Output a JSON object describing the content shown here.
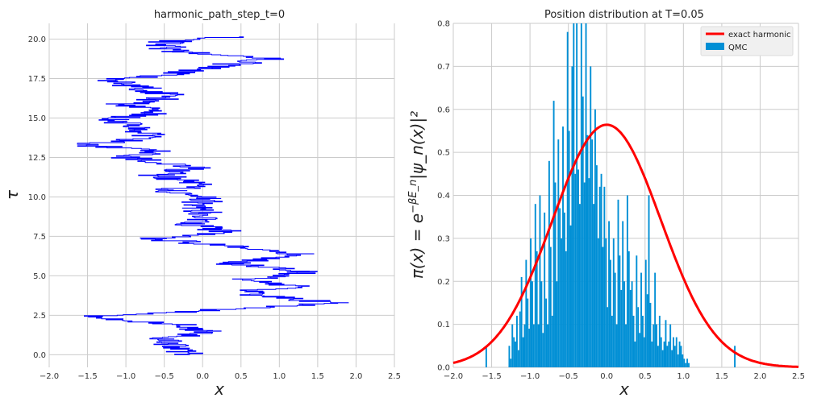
{
  "colors": {
    "background": "#ffffff",
    "axes_bg": "#ffffff",
    "grid": "#cbcbcb",
    "path": "#0000ff",
    "histogram": "#008fd5",
    "exact_curve": "#ff0000"
  },
  "chart_data": [
    {
      "type": "line",
      "title": "harmonic_path_step_t=0",
      "xlabel": "x",
      "ylabel": "τ",
      "xlim": [
        -2.0,
        2.5
      ],
      "ylim": [
        -0.8,
        21.0
      ],
      "grid": true,
      "xticks": [
        "−2.0",
        "−1.5",
        "−1.0",
        "−0.5",
        "0.0",
        "0.5",
        "1.0",
        "1.5",
        "2.0",
        "2.5"
      ],
      "yticks": [
        "0.0",
        "2.5",
        "5.0",
        "7.5",
        "10.0",
        "12.5",
        "15.0",
        "17.5",
        "20.0"
      ],
      "series": [
        {
          "style": "step",
          "anchors": [
            [
              0,
              -0.25
            ],
            [
              0.5,
              -0.35
            ],
            [
              1.0,
              -0.55
            ],
            [
              1.5,
              0.05
            ],
            [
              2.0,
              -0.4
            ],
            [
              2.4,
              -1.55
            ],
            [
              2.8,
              0.0
            ],
            [
              3.3,
              1.7
            ],
            [
              3.7,
              0.9
            ],
            [
              4.0,
              0.5
            ],
            [
              4.3,
              1.25
            ],
            [
              4.8,
              0.6
            ],
            [
              5.3,
              1.45
            ],
            [
              5.8,
              0.3
            ],
            [
              6.4,
              1.3
            ],
            [
              6.8,
              0.5
            ],
            [
              7.4,
              -0.7
            ],
            [
              7.8,
              0.35
            ],
            [
              8.3,
              -0.2
            ],
            [
              8.8,
              0.1
            ],
            [
              9.3,
              -0.05
            ],
            [
              9.9,
              0.0
            ],
            [
              10.4,
              -0.4
            ],
            [
              10.9,
              -0.1
            ],
            [
              11.4,
              -0.6
            ],
            [
              11.9,
              -0.05
            ],
            [
              12.5,
              -0.95
            ],
            [
              13.0,
              -0.5
            ],
            [
              13.3,
              -1.6
            ],
            [
              13.8,
              -0.6
            ],
            [
              14.3,
              -0.9
            ],
            [
              14.9,
              -1.15
            ],
            [
              15.4,
              -0.6
            ],
            [
              15.9,
              -1.0
            ],
            [
              16.4,
              -0.3
            ],
            [
              16.9,
              -0.8
            ],
            [
              17.4,
              -1.2
            ],
            [
              17.8,
              -0.4
            ],
            [
              18.3,
              0.2
            ],
            [
              18.8,
              0.9
            ],
            [
              19.2,
              -0.3
            ],
            [
              19.7,
              -0.6
            ],
            [
              20.0,
              -0.25
            ],
            [
              20.2,
              0.5
            ]
          ]
        }
      ]
    },
    {
      "type": "bar",
      "title": "Position distribution at T=0.05",
      "xlabel": "x",
      "ylabel": "π(x) = e^{−βE_n}|ψ_n(x)|²",
      "xlim": [
        -2.0,
        2.5
      ],
      "ylim": [
        0.0,
        0.8
      ],
      "grid": true,
      "xticks": [
        "−2.0",
        "−1.5",
        "−1.0",
        "−0.5",
        "0.0",
        "0.5",
        "1.0",
        "1.5",
        "2.0",
        "2.5"
      ],
      "yticks": [
        "0.0",
        "0.1",
        "0.2",
        "0.3",
        "0.4",
        "0.5",
        "0.6",
        "0.7",
        "0.8"
      ],
      "legend_position": "top-right",
      "legend": [
        "exact harmonic",
        "QMC"
      ],
      "series": [
        {
          "name": "QMC",
          "kind": "histogram",
          "bin_range": [
            -1.58,
            1.68
          ],
          "bin_width": 0.02,
          "values": [
            0.05,
            0.0,
            0.0,
            0.0,
            0.0,
            0.0,
            0.0,
            0.0,
            0.0,
            0.0,
            0.0,
            0.0,
            0.0,
            0.0,
            0.0,
            0.05,
            0.02,
            0.1,
            0.07,
            0.06,
            0.12,
            0.04,
            0.13,
            0.21,
            0.07,
            0.1,
            0.25,
            0.16,
            0.09,
            0.3,
            0.2,
            0.1,
            0.38,
            0.27,
            0.1,
            0.4,
            0.2,
            0.08,
            0.36,
            0.16,
            0.1,
            0.48,
            0.28,
            0.12,
            0.62,
            0.43,
            0.2,
            0.53,
            0.37,
            0.3,
            0.56,
            0.36,
            0.27,
            0.78,
            0.55,
            0.33,
            0.7,
            0.8,
            0.45,
            0.85,
            0.46,
            0.38,
            0.82,
            0.63,
            0.43,
            0.8,
            0.54,
            0.44,
            0.7,
            0.53,
            0.38,
            0.6,
            0.47,
            0.3,
            0.42,
            0.45,
            0.28,
            0.42,
            0.3,
            0.14,
            0.34,
            0.25,
            0.12,
            0.3,
            0.22,
            0.1,
            0.39,
            0.26,
            0.18,
            0.34,
            0.2,
            0.1,
            0.4,
            0.27,
            0.18,
            0.2,
            0.12,
            0.06,
            0.26,
            0.14,
            0.08,
            0.22,
            0.12,
            0.07,
            0.25,
            0.17,
            0.4,
            0.15,
            0.06,
            0.1,
            0.22,
            0.1,
            0.05,
            0.12,
            0.07,
            0.04,
            0.06,
            0.11,
            0.05,
            0.06,
            0.1,
            0.04,
            0.07,
            0.05,
            0.07,
            0.03,
            0.06,
            0.05,
            0.03,
            0.02,
            0.01,
            0.02,
            0.01,
            0.0,
            0.0,
            0.0,
            0.0,
            0.0,
            0.0,
            0.0,
            0.0,
            0.0,
            0.0,
            0.0,
            0.0,
            0.0,
            0.0,
            0.0,
            0.0,
            0.0,
            0.0,
            0.0,
            0.0,
            0.0,
            0.0,
            0.0,
            0.0,
            0.0,
            0.0,
            0.0,
            0.0,
            0.0,
            0.05
          ]
        },
        {
          "name": "exact harmonic",
          "kind": "gaussian",
          "amplitude": 0.5642,
          "mean": 0.0,
          "variance": 0.5
        }
      ]
    }
  ]
}
